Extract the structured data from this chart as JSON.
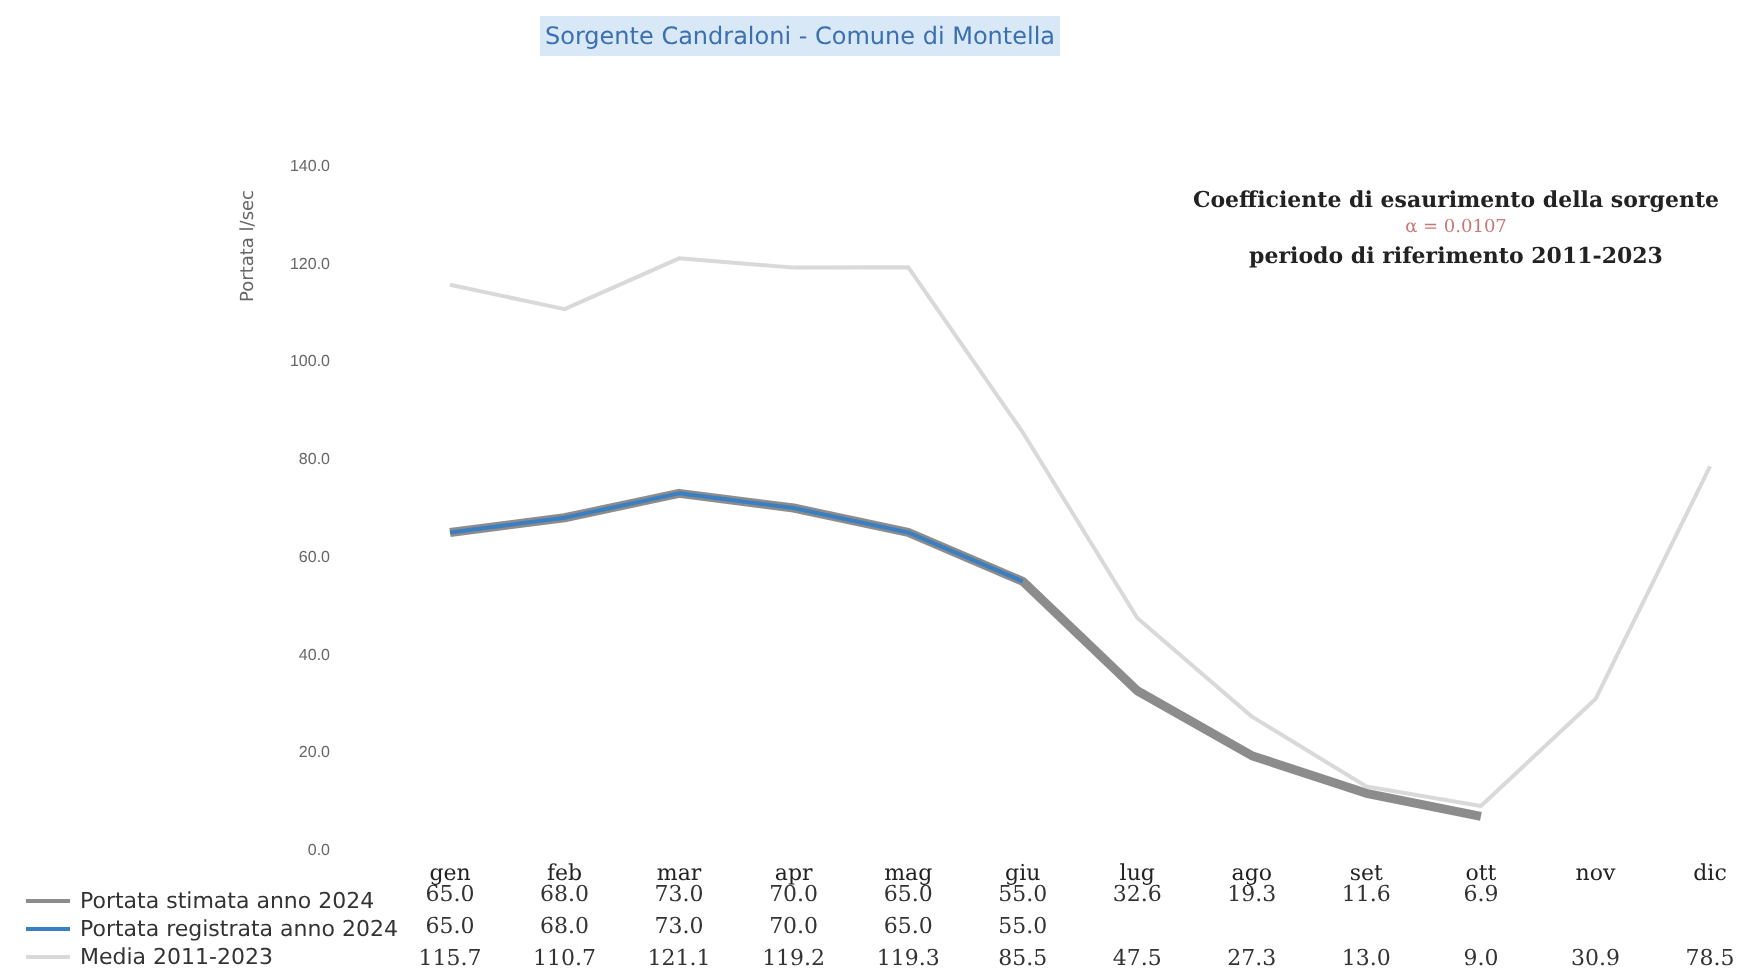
{
  "chart_data": {
    "type": "line",
    "title": "Sorgente Candraloni - Comune di Montella",
    "ylabel": "Portata l/sec",
    "annotations": [
      "Coefficiente di esaurimento della sorgente",
      "α = 0.0107",
      "periodo di riferimento 2011-2023"
    ],
    "categories": [
      "gen",
      "feb",
      "mar",
      "apr",
      "mag",
      "giu",
      "lug",
      "ago",
      "set",
      "ott",
      "nov",
      "dic"
    ],
    "series": [
      {
        "name": "Portata stimata anno 2024",
        "color": "#8c8c8c",
        "values": [
          65.0,
          68.0,
          73.0,
          70.0,
          65.0,
          55.0,
          32.6,
          19.3,
          11.6,
          6.9,
          null,
          null
        ],
        "value_labels": [
          "65.0",
          "68.0",
          "73.0",
          "70.0",
          "65.0",
          "55.0",
          "32.6",
          "19.3",
          "11.6",
          "6.9",
          null,
          null
        ]
      },
      {
        "name": "Portata registrata anno 2024",
        "color": "#3a7fc1",
        "values": [
          65.0,
          68.0,
          73.0,
          70.0,
          65.0,
          55.0,
          null,
          null,
          null,
          null,
          null,
          null
        ],
        "value_labels": [
          "65.0",
          "68.0",
          "73.0",
          "70.0",
          "65.0",
          "55.0",
          null,
          null,
          null,
          null,
          null,
          null
        ]
      },
      {
        "name": "Media 2011-2023",
        "color": "#d9d9d9",
        "values": [
          115.7,
          110.7,
          121.1,
          119.2,
          119.3,
          85.5,
          47.5,
          27.3,
          13.0,
          9.0,
          30.9,
          78.5
        ],
        "value_labels": [
          "115.7",
          "110.7",
          "121.1",
          "119.2",
          "119.3",
          "85.5",
          "47.5",
          "27.3",
          "13.0",
          "9.0",
          "30.9",
          "78.5"
        ]
      }
    ],
    "ylim": [
      0,
      140
    ],
    "yticks": [
      {
        "value": 0,
        "label": "0.0"
      },
      {
        "value": 20,
        "label": "20.0"
      },
      {
        "value": 40,
        "label": "40.0"
      },
      {
        "value": 60,
        "label": "60.0"
      },
      {
        "value": 80,
        "label": "80.0"
      },
      {
        "value": 100,
        "label": "100.0"
      },
      {
        "value": 120,
        "label": "120.0"
      },
      {
        "value": 140,
        "label": "140.0"
      }
    ],
    "grid": false,
    "legend": "bottom left",
    "marker": "none",
    "line_style": "solid"
  }
}
